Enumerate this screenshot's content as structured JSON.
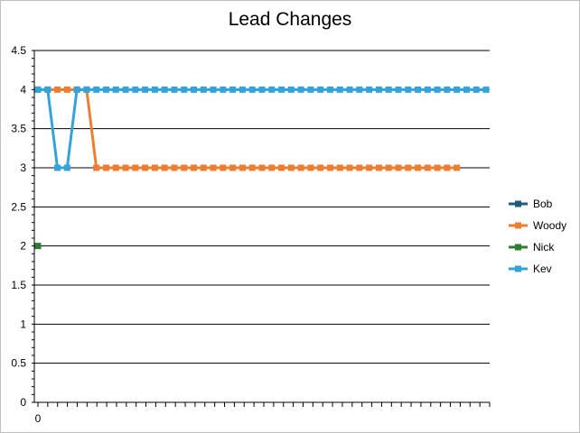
{
  "chart_data": {
    "type": "line",
    "title": "Lead Changes",
    "xlabel": "",
    "ylabel": "",
    "ylim": [
      0,
      4.5
    ],
    "ytick_step": 0.5,
    "xtick_labels": [
      "0"
    ],
    "x_count": 47,
    "grid": true,
    "legend_position": "right",
    "series": [
      {
        "name": "Bob",
        "color": "#1f5c7a",
        "values": []
      },
      {
        "name": "Woody",
        "color": "#ed7d31",
        "values": [
          4,
          4,
          4,
          4,
          4,
          4,
          3,
          3,
          3,
          3,
          3,
          3,
          3,
          3,
          3,
          3,
          3,
          3,
          3,
          3,
          3,
          3,
          3,
          3,
          3,
          3,
          3,
          3,
          3,
          3,
          3,
          3,
          3,
          3,
          3,
          3,
          3,
          3,
          3,
          3,
          3,
          3,
          3,
          3
        ]
      },
      {
        "name": "Nick",
        "color": "#2e7d32",
        "values": [
          2
        ]
      },
      {
        "name": "Kev",
        "color": "#33a3dc",
        "values": [
          4,
          4,
          3,
          3,
          4,
          4,
          4,
          4,
          4,
          4,
          4,
          4,
          4,
          4,
          4,
          4,
          4,
          4,
          4,
          4,
          4,
          4,
          4,
          4,
          4,
          4,
          4,
          4,
          4,
          4,
          4,
          4,
          4,
          4,
          4,
          4,
          4,
          4,
          4,
          4,
          4,
          4,
          4,
          4,
          4,
          4,
          4
        ]
      }
    ]
  }
}
